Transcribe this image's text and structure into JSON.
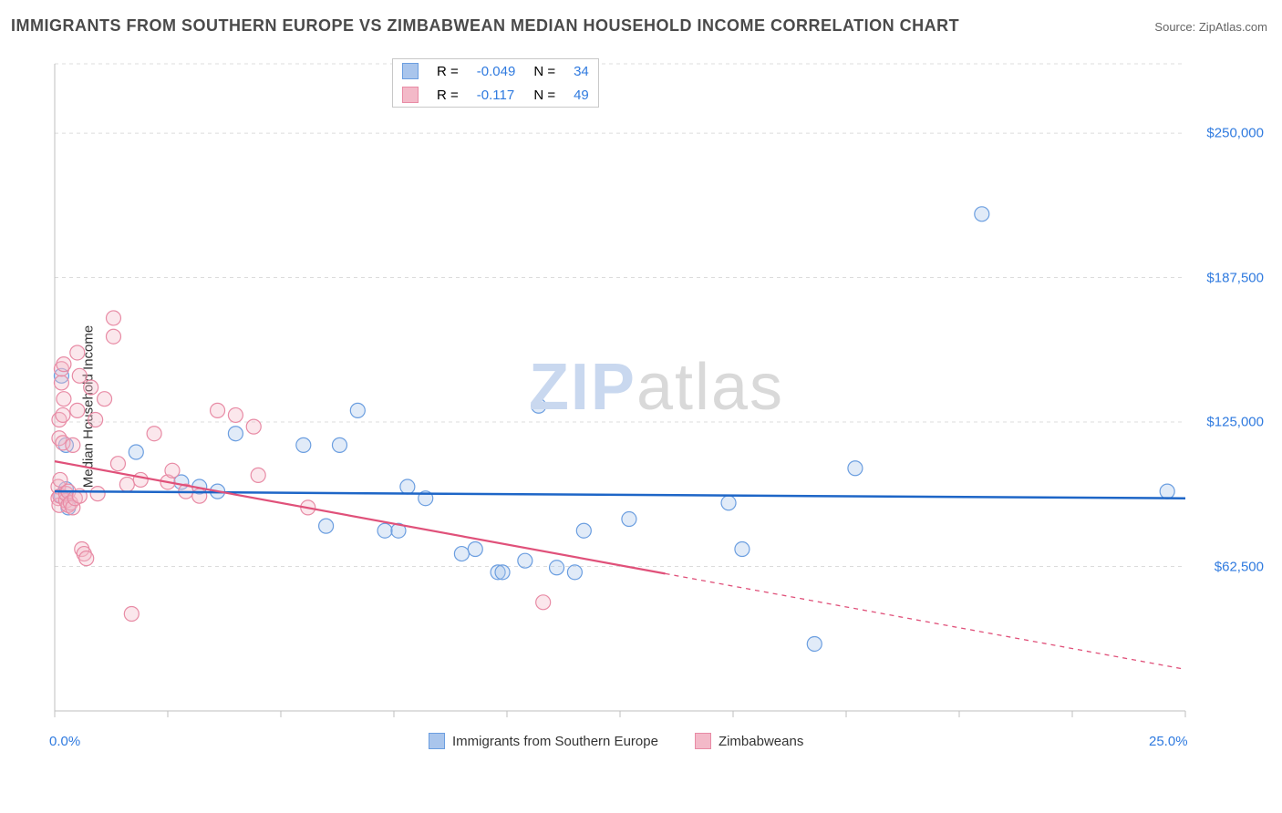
{
  "title": "IMMIGRANTS FROM SOUTHERN EUROPE VS ZIMBABWEAN MEDIAN HOUSEHOLD INCOME CORRELATION CHART",
  "source_label": "Source:",
  "source_name": "ZipAtlas.com",
  "ylabel": "Median Household Income",
  "watermark": {
    "part1": "ZIP",
    "part2": "atlas"
  },
  "chart": {
    "type": "scatter",
    "background_color": "#ffffff",
    "grid_color": "#dcdcdc",
    "axis_color": "#bfbfbf",
    "tick_label_color": "#2f7adf",
    "x": {
      "min": 0.0,
      "max": 25.0,
      "ticks_minor_step": 2.5,
      "labels": [
        {
          "v": 0.0,
          "t": "0.0%"
        },
        {
          "v": 25.0,
          "t": "25.0%"
        }
      ]
    },
    "y": {
      "min": 0,
      "max": 280000,
      "gridlines": [
        62500,
        125000,
        187500,
        250000,
        280000
      ],
      "labels": [
        {
          "v": 62500,
          "t": "$62,500"
        },
        {
          "v": 125000,
          "t": "$125,000"
        },
        {
          "v": 187500,
          "t": "$187,500"
        },
        {
          "v": 250000,
          "t": "$250,000"
        }
      ]
    },
    "marker_radius": 8,
    "marker_fill_opacity": 0.35,
    "marker_stroke_width": 1.2,
    "series": [
      {
        "name": "Immigrants from Southern Europe",
        "color_fill": "#a9c5ec",
        "color_stroke": "#6b9ee0",
        "R": "-0.049",
        "N": "34",
        "trend": {
          "slope_per_xunit": -120,
          "intercept": 95000,
          "solid_xmax": 25.0,
          "color": "#1e66c7",
          "width": 2.5
        },
        "points": [
          {
            "x": 0.15,
            "y": 93000
          },
          {
            "x": 0.15,
            "y": 145000
          },
          {
            "x": 0.25,
            "y": 115000
          },
          {
            "x": 0.25,
            "y": 96000
          },
          {
            "x": 1.8,
            "y": 112000
          },
          {
            "x": 2.8,
            "y": 99000
          },
          {
            "x": 3.2,
            "y": 97000
          },
          {
            "x": 3.6,
            "y": 95000
          },
          {
            "x": 4.0,
            "y": 120000
          },
          {
            "x": 5.5,
            "y": 115000
          },
          {
            "x": 6.0,
            "y": 80000
          },
          {
            "x": 6.3,
            "y": 115000
          },
          {
            "x": 6.7,
            "y": 130000
          },
          {
            "x": 7.3,
            "y": 78000
          },
          {
            "x": 7.6,
            "y": 78000
          },
          {
            "x": 7.8,
            "y": 97000
          },
          {
            "x": 8.2,
            "y": 92000
          },
          {
            "x": 9.0,
            "y": 68000
          },
          {
            "x": 9.3,
            "y": 70000
          },
          {
            "x": 9.8,
            "y": 60000
          },
          {
            "x": 9.9,
            "y": 60000
          },
          {
            "x": 10.4,
            "y": 65000
          },
          {
            "x": 10.7,
            "y": 132000
          },
          {
            "x": 11.1,
            "y": 62000
          },
          {
            "x": 11.5,
            "y": 60000
          },
          {
            "x": 11.7,
            "y": 78000
          },
          {
            "x": 12.7,
            "y": 83000
          },
          {
            "x": 14.9,
            "y": 90000
          },
          {
            "x": 15.2,
            "y": 70000
          },
          {
            "x": 16.8,
            "y": 29000
          },
          {
            "x": 17.7,
            "y": 105000
          },
          {
            "x": 20.5,
            "y": 215000
          },
          {
            "x": 24.6,
            "y": 95000
          },
          {
            "x": 0.3,
            "y": 88000
          }
        ]
      },
      {
        "name": "Zimbabweans",
        "color_fill": "#f3b9c8",
        "color_stroke": "#e88ba5",
        "R": "-0.117",
        "N": "49",
        "trend": {
          "slope_per_xunit": -3600,
          "intercept": 108000,
          "solid_xmax": 13.5,
          "color": "#e0517a",
          "width": 2.2
        },
        "points": [
          {
            "x": 0.08,
            "y": 92000
          },
          {
            "x": 0.08,
            "y": 97000
          },
          {
            "x": 0.1,
            "y": 118000
          },
          {
            "x": 0.1,
            "y": 126000
          },
          {
            "x": 0.1,
            "y": 89000
          },
          {
            "x": 0.12,
            "y": 93000
          },
          {
            "x": 0.12,
            "y": 100000
          },
          {
            "x": 0.15,
            "y": 142000
          },
          {
            "x": 0.15,
            "y": 148000
          },
          {
            "x": 0.18,
            "y": 116000
          },
          {
            "x": 0.18,
            "y": 128000
          },
          {
            "x": 0.2,
            "y": 135000
          },
          {
            "x": 0.2,
            "y": 150000
          },
          {
            "x": 0.25,
            "y": 91000
          },
          {
            "x": 0.25,
            "y": 94000
          },
          {
            "x": 0.3,
            "y": 89000
          },
          {
            "x": 0.3,
            "y": 95000
          },
          {
            "x": 0.35,
            "y": 90000
          },
          {
            "x": 0.4,
            "y": 88000
          },
          {
            "x": 0.4,
            "y": 115000
          },
          {
            "x": 0.45,
            "y": 92000
          },
          {
            "x": 0.5,
            "y": 130000
          },
          {
            "x": 0.55,
            "y": 93000
          },
          {
            "x": 0.55,
            "y": 145000
          },
          {
            "x": 0.6,
            "y": 70000
          },
          {
            "x": 0.65,
            "y": 68000
          },
          {
            "x": 0.7,
            "y": 66000
          },
          {
            "x": 0.8,
            "y": 140000
          },
          {
            "x": 0.9,
            "y": 126000
          },
          {
            "x": 0.95,
            "y": 94000
          },
          {
            "x": 1.1,
            "y": 135000
          },
          {
            "x": 1.3,
            "y": 170000
          },
          {
            "x": 1.3,
            "y": 162000
          },
          {
            "x": 1.4,
            "y": 107000
          },
          {
            "x": 1.6,
            "y": 98000
          },
          {
            "x": 1.7,
            "y": 42000
          },
          {
            "x": 1.9,
            "y": 100000
          },
          {
            "x": 2.2,
            "y": 120000
          },
          {
            "x": 2.5,
            "y": 99000
          },
          {
            "x": 2.6,
            "y": 104000
          },
          {
            "x": 2.9,
            "y": 95000
          },
          {
            "x": 3.2,
            "y": 93000
          },
          {
            "x": 3.6,
            "y": 130000
          },
          {
            "x": 4.0,
            "y": 128000
          },
          {
            "x": 4.4,
            "y": 123000
          },
          {
            "x": 4.5,
            "y": 102000
          },
          {
            "x": 5.6,
            "y": 88000
          },
          {
            "x": 10.8,
            "y": 47000
          },
          {
            "x": 0.5,
            "y": 155000
          }
        ]
      }
    ],
    "legend_bottom": [
      {
        "label": "Immigrants from Southern Europe",
        "fill": "#a9c5ec",
        "stroke": "#6b9ee0"
      },
      {
        "label": "Zimbabweans",
        "fill": "#f3b9c8",
        "stroke": "#e88ba5"
      }
    ]
  }
}
